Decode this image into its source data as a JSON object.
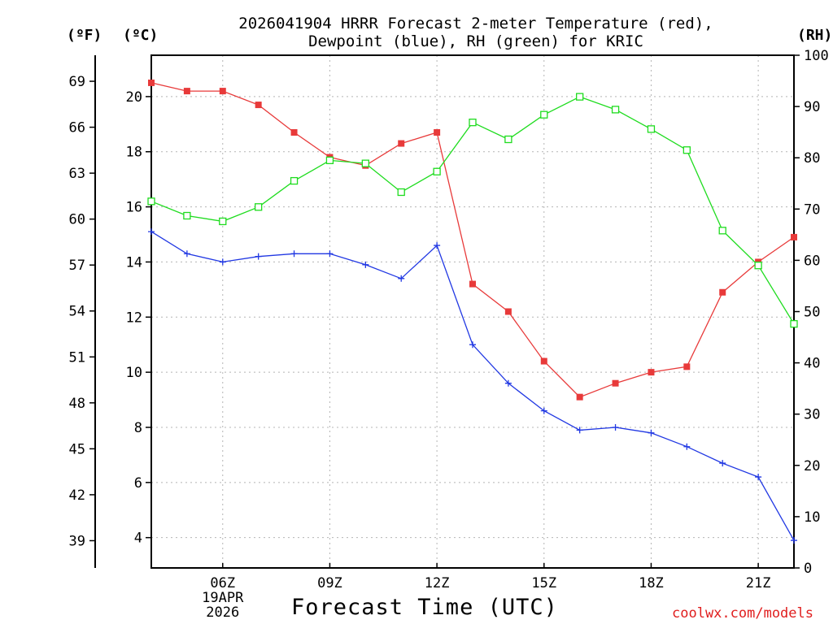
{
  "chart_data": {
    "type": "line",
    "title_line1": "2026041904 HRRR Forecast 2-meter Temperature (red),",
    "title_line2": "Dewpoint (blue), RH (green) for KRIC",
    "xlabel": "Forecast Time (UTC)",
    "date_label_line1": "19APR",
    "date_label_line2": "2026",
    "units": {
      "fahrenheit": "(ºF)",
      "celsius": "(ºC)",
      "rh": "(RH)"
    },
    "x_hours": [
      4,
      5,
      6,
      7,
      8,
      9,
      10,
      11,
      12,
      13,
      14,
      15,
      16,
      17,
      18,
      19,
      20,
      21,
      22
    ],
    "x_range": [
      4,
      22
    ],
    "x_ticks": [
      {
        "hour": 6,
        "label": "06Z"
      },
      {
        "hour": 9,
        "label": "09Z"
      },
      {
        "hour": 12,
        "label": "12Z"
      },
      {
        "hour": 15,
        "label": "15Z"
      },
      {
        "hour": 18,
        "label": "18Z"
      },
      {
        "hour": 21,
        "label": "21Z"
      }
    ],
    "celsius_range": [
      2.9,
      21.5
    ],
    "celsius_ticks": [
      "4",
      "6",
      "8",
      "10",
      "12",
      "14",
      "16",
      "18",
      "20"
    ],
    "fahrenheit_ticks": [
      "39",
      "42",
      "45",
      "48",
      "51",
      "54",
      "57",
      "60",
      "63",
      "66",
      "69"
    ],
    "rh_range": [
      0,
      100
    ],
    "rh_ticks": [
      "0",
      "10",
      "20",
      "30",
      "40",
      "50",
      "60",
      "70",
      "80",
      "90",
      "100"
    ],
    "series": [
      {
        "name": "Temperature",
        "unit": "C",
        "color": "#e83a3a",
        "marker": "filled-square",
        "values": [
          20.5,
          20.2,
          20.2,
          19.7,
          18.7,
          17.8,
          17.5,
          18.3,
          18.7,
          13.2,
          12.2,
          10.4,
          9.1,
          9.6,
          10.0,
          10.2,
          12.9,
          14.0,
          14.9
        ]
      },
      {
        "name": "Dewpoint",
        "unit": "C",
        "color": "#2138e3",
        "marker": "plus",
        "values": [
          15.1,
          14.3,
          14.0,
          14.2,
          14.3,
          14.3,
          13.9,
          13.4,
          14.6,
          11.0,
          9.6,
          8.6,
          7.9,
          8.0,
          7.8,
          7.3,
          6.7,
          6.2,
          3.9
        ]
      },
      {
        "name": "RH",
        "unit": "%",
        "color": "#1fdc1f",
        "marker": "open-square",
        "values": [
          71.5,
          68.7,
          67.6,
          70.4,
          75.5,
          79.5,
          78.9,
          73.3,
          77.3,
          86.9,
          83.6,
          88.4,
          91.9,
          89.4,
          85.6,
          81.5,
          65.8,
          59.0,
          47.6
        ]
      }
    ],
    "grid": true,
    "credit": "coolwx.com/models"
  }
}
